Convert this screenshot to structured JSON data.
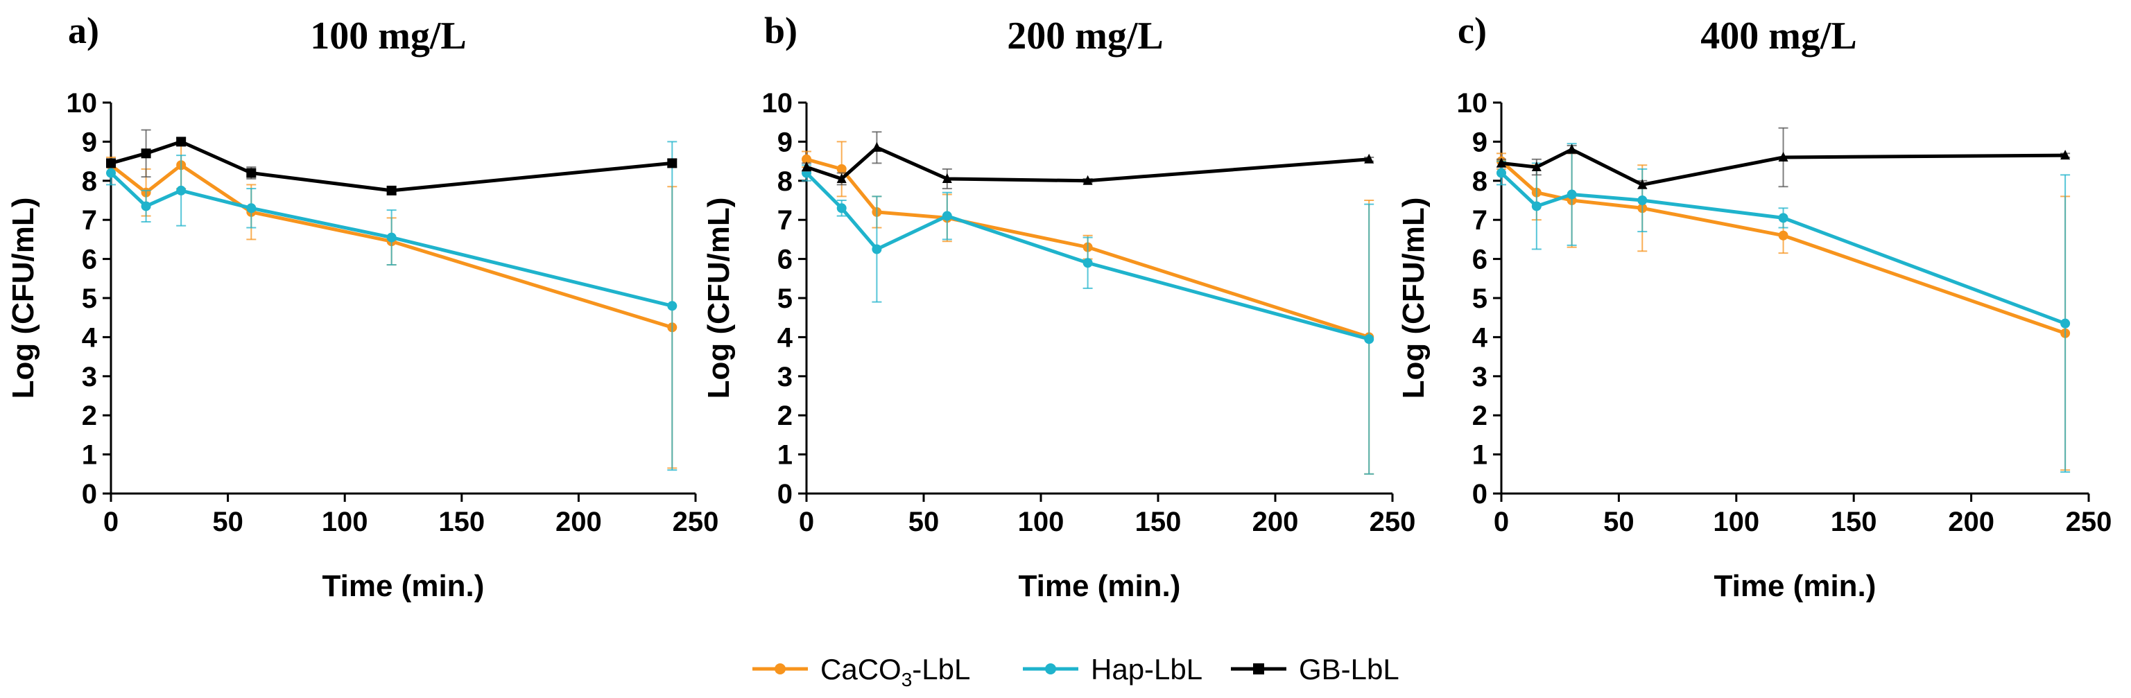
{
  "chart_data": [
    {
      "type": "line",
      "panel_label": "a)",
      "title": "100 mg/L",
      "xlabel": "Time (min.)",
      "ylabel": "Log (CFU/mL)",
      "xlim": [
        0,
        250
      ],
      "ylim": [
        0,
        10
      ],
      "xticks": [
        0,
        50,
        100,
        150,
        200,
        250
      ],
      "yticks": [
        0,
        1,
        2,
        3,
        4,
        5,
        6,
        7,
        8,
        9,
        10
      ],
      "x": [
        0,
        15,
        30,
        60,
        120,
        240
      ],
      "series": [
        {
          "name": "CaCO3-LbL",
          "color": "#f7941d",
          "marker": "circle",
          "values": [
            8.4,
            7.7,
            8.4,
            7.2,
            6.45,
            4.25
          ],
          "errors": [
            0.2,
            0.6,
            0.6,
            0.7,
            0.6,
            3.6
          ]
        },
        {
          "name": "Hap-LbL",
          "color": "#1fb3cc",
          "marker": "circle",
          "values": [
            8.2,
            7.35,
            7.75,
            7.3,
            6.55,
            4.8
          ],
          "errors": [
            0.3,
            0.4,
            0.9,
            0.5,
            0.7,
            4.2
          ]
        },
        {
          "name": "GB-LbL",
          "color": "#000000",
          "marker": "square",
          "values": [
            8.45,
            8.7,
            9.0,
            8.2,
            7.75,
            8.45
          ],
          "errors": [
            0.1,
            0.6,
            0.1,
            0.15,
            0.1,
            0.1
          ]
        }
      ]
    },
    {
      "type": "line",
      "panel_label": "b)",
      "title": "200 mg/L",
      "xlabel": "Time (min.)",
      "ylabel": "Log (CFU/mL)",
      "xlim": [
        0,
        250
      ],
      "ylim": [
        0,
        10
      ],
      "xticks": [
        0,
        50,
        100,
        150,
        200,
        250
      ],
      "yticks": [
        0,
        1,
        2,
        3,
        4,
        5,
        6,
        7,
        8,
        9,
        10
      ],
      "x": [
        0,
        15,
        30,
        60,
        120,
        240
      ],
      "series": [
        {
          "name": "CaCO3-LbL",
          "color": "#f7941d",
          "marker": "circle",
          "values": [
            8.55,
            8.3,
            7.2,
            7.05,
            6.3,
            4.0
          ],
          "errors": [
            0.2,
            0.7,
            0.4,
            0.6,
            0.3,
            3.5
          ]
        },
        {
          "name": "Hap-LbL",
          "color": "#1fb3cc",
          "marker": "circle",
          "values": [
            8.2,
            7.3,
            6.25,
            7.1,
            5.9,
            3.95
          ],
          "errors": [
            0.2,
            0.2,
            1.35,
            0.6,
            0.65,
            3.45
          ]
        },
        {
          "name": "GB-LbL",
          "color": "#000000",
          "marker": "triangle",
          "values": [
            8.35,
            8.05,
            8.85,
            8.05,
            8.0,
            8.55
          ],
          "errors": [
            0.1,
            0.15,
            0.4,
            0.25,
            0.05,
            0.05
          ]
        }
      ]
    },
    {
      "type": "line",
      "panel_label": "c)",
      "title": "400 mg/L",
      "xlabel": "Time (min.)",
      "ylabel": "Log (CFU/mL)",
      "xlim": [
        0,
        250
      ],
      "ylim": [
        0,
        10
      ],
      "xticks": [
        0,
        50,
        100,
        150,
        200,
        250
      ],
      "yticks": [
        0,
        1,
        2,
        3,
        4,
        5,
        6,
        7,
        8,
        9,
        10
      ],
      "x": [
        0,
        15,
        30,
        60,
        120,
        240
      ],
      "series": [
        {
          "name": "CaCO3-LbL",
          "color": "#f7941d",
          "marker": "circle",
          "values": [
            8.5,
            7.7,
            7.5,
            7.3,
            6.6,
            4.1
          ],
          "errors": [
            0.2,
            0.7,
            1.2,
            1.1,
            0.45,
            3.5
          ]
        },
        {
          "name": "Hap-LbL",
          "color": "#1fb3cc",
          "marker": "circle",
          "values": [
            8.2,
            7.35,
            7.65,
            7.5,
            7.05,
            4.35
          ],
          "errors": [
            0.3,
            1.1,
            1.3,
            0.8,
            0.25,
            3.8
          ]
        },
        {
          "name": "GB-LbL",
          "color": "#000000",
          "marker": "triangle",
          "values": [
            8.45,
            8.35,
            8.8,
            7.9,
            8.6,
            8.65
          ],
          "errors": [
            0.1,
            0.2,
            0.1,
            0.1,
            0.75,
            0.05
          ]
        }
      ]
    }
  ],
  "legend": [
    {
      "main": "CaCO",
      "sub": "3",
      "rest": "-LbL",
      "color": "#f7941d",
      "marker": "circle"
    },
    {
      "main": "Hap-LbL",
      "sub": "",
      "rest": "",
      "color": "#1fb3cc",
      "marker": "circle"
    },
    {
      "main": "GB-LbL",
      "sub": "",
      "rest": "",
      "color": "#000000",
      "marker": "square"
    }
  ]
}
